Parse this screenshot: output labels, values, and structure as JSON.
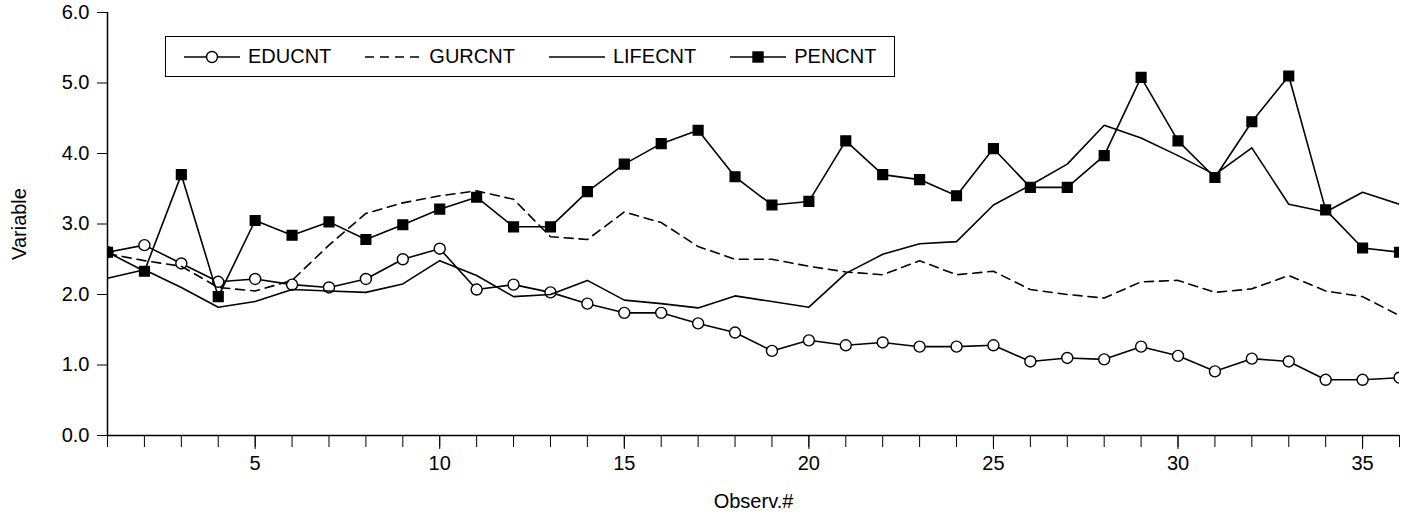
{
  "chart_data": {
    "type": "line",
    "x_label": "Observ.#",
    "y_label": "Variable",
    "x": [
      1,
      2,
      3,
      4,
      5,
      6,
      7,
      8,
      9,
      10,
      11,
      12,
      13,
      14,
      15,
      16,
      17,
      18,
      19,
      20,
      21,
      22,
      23,
      24,
      25,
      26,
      27,
      28,
      29,
      30,
      31,
      32,
      33,
      34,
      35,
      36
    ],
    "xlim": [
      1,
      36
    ],
    "xticks": [
      5,
      10,
      15,
      20,
      25,
      30,
      35
    ],
    "ylim": [
      0,
      6
    ],
    "yticks": [
      0,
      1,
      2,
      3,
      4,
      5,
      6
    ],
    "grid": false,
    "legend": "upper left",
    "series": [
      {
        "name": "EDUCNT",
        "color": "#000000",
        "marker": "circle",
        "line_style": "solid",
        "values": [
          2.6,
          2.7,
          2.44,
          2.18,
          2.22,
          2.14,
          2.1,
          2.22,
          2.5,
          2.65,
          2.07,
          2.14,
          2.03,
          1.87,
          1.74,
          1.74,
          1.59,
          1.46,
          1.2,
          1.35,
          1.28,
          1.32,
          1.26,
          1.26,
          1.28,
          1.05,
          1.1,
          1.08,
          1.26,
          1.13,
          0.91,
          1.09,
          1.05,
          0.79,
          0.79,
          0.82
        ]
      },
      {
        "name": "GURCNT",
        "color": "#000000",
        "marker": "none",
        "line_style": "dashed",
        "values": [
          2.58,
          2.48,
          2.4,
          2.1,
          2.05,
          2.2,
          2.7,
          3.15,
          3.3,
          3.4,
          3.47,
          3.35,
          2.82,
          2.78,
          3.17,
          3.02,
          2.68,
          2.5,
          2.5,
          2.4,
          2.32,
          2.28,
          2.48,
          2.28,
          2.33,
          2.07,
          2.0,
          1.95,
          2.18,
          2.2,
          2.03,
          2.08,
          2.27,
          2.05,
          1.97,
          1.7
        ]
      },
      {
        "name": "LIFECNT",
        "color": "#000000",
        "marker": "none",
        "line_style": "solid",
        "values": [
          2.23,
          2.35,
          2.1,
          1.82,
          1.9,
          2.07,
          2.05,
          2.03,
          2.15,
          2.48,
          2.27,
          1.97,
          2.0,
          2.2,
          1.92,
          1.87,
          1.81,
          1.98,
          1.9,
          1.82,
          2.3,
          2.57,
          2.72,
          2.75,
          3.27,
          3.55,
          3.85,
          4.4,
          4.22,
          3.97,
          3.7,
          4.08,
          3.28,
          3.17,
          3.45,
          3.28
        ]
      },
      {
        "name": "PENCNT",
        "color": "#000000",
        "marker": "square",
        "line_style": "solid",
        "values": [
          2.6,
          2.33,
          3.7,
          1.97,
          3.05,
          2.84,
          3.03,
          2.78,
          2.99,
          3.21,
          3.38,
          2.96,
          2.96,
          3.46,
          3.85,
          4.14,
          4.33,
          3.67,
          3.27,
          3.32,
          4.18,
          3.7,
          3.63,
          3.4,
          4.07,
          3.52,
          3.52,
          3.97,
          5.08,
          4.18,
          3.66,
          4.45,
          5.1,
          3.2,
          2.66,
          2.6
        ]
      }
    ]
  }
}
